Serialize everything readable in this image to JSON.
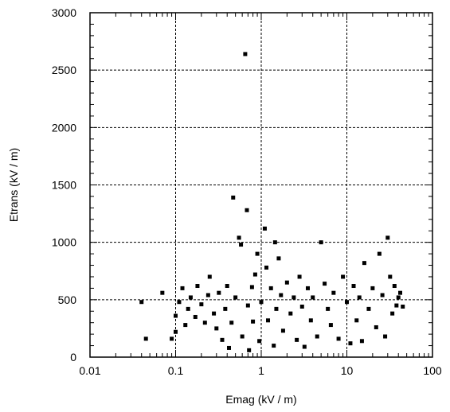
{
  "chart_data": {
    "type": "scatter",
    "title": "",
    "xlabel": "Emag   (kV / m)",
    "ylabel": "Etrans   (kV / m)",
    "x_scale": "log",
    "xlim": [
      0.01,
      100
    ],
    "ylim": [
      0,
      3000
    ],
    "grid": true,
    "x_major_ticks": [
      0.01,
      0.1,
      1,
      10,
      100
    ],
    "x_tick_labels": [
      "0.01",
      "0.1",
      "1",
      "10",
      "100"
    ],
    "y_ticks": [
      0,
      500,
      1000,
      1500,
      2000,
      2500,
      3000
    ],
    "y_tick_labels": [
      "0",
      "500",
      "1000",
      "1500",
      "2000",
      "2500",
      "3000"
    ],
    "marker_color": "#000000",
    "points": [
      [
        0.04,
        480
      ],
      [
        0.045,
        160
      ],
      [
        0.07,
        560
      ],
      [
        0.09,
        160
      ],
      [
        0.1,
        220
      ],
      [
        0.1,
        360
      ],
      [
        0.11,
        480
      ],
      [
        0.12,
        600
      ],
      [
        0.13,
        280
      ],
      [
        0.14,
        420
      ],
      [
        0.15,
        520
      ],
      [
        0.17,
        350
      ],
      [
        0.18,
        620
      ],
      [
        0.2,
        460
      ],
      [
        0.22,
        300
      ],
      [
        0.24,
        540
      ],
      [
        0.25,
        700
      ],
      [
        0.28,
        380
      ],
      [
        0.3,
        250
      ],
      [
        0.32,
        560
      ],
      [
        0.35,
        150
      ],
      [
        0.38,
        420
      ],
      [
        0.4,
        620
      ],
      [
        0.42,
        80
      ],
      [
        0.45,
        300
      ],
      [
        0.47,
        1390
      ],
      [
        0.5,
        520
      ],
      [
        0.55,
        1040
      ],
      [
        0.58,
        980
      ],
      [
        0.6,
        180
      ],
      [
        0.65,
        2640
      ],
      [
        0.68,
        1280
      ],
      [
        0.7,
        450
      ],
      [
        0.72,
        60
      ],
      [
        0.78,
        610
      ],
      [
        0.8,
        310
      ],
      [
        0.85,
        720
      ],
      [
        0.9,
        900
      ],
      [
        0.95,
        140
      ],
      [
        1.0,
        480
      ],
      [
        1.1,
        1120
      ],
      [
        1.15,
        780
      ],
      [
        1.2,
        320
      ],
      [
        1.3,
        600
      ],
      [
        1.4,
        100
      ],
      [
        1.45,
        1000
      ],
      [
        1.5,
        420
      ],
      [
        1.6,
        860
      ],
      [
        1.7,
        540
      ],
      [
        1.8,
        230
      ],
      [
        2.0,
        650
      ],
      [
        2.2,
        380
      ],
      [
        2.4,
        520
      ],
      [
        2.6,
        150
      ],
      [
        2.8,
        700
      ],
      [
        3.0,
        440
      ],
      [
        3.2,
        90
      ],
      [
        3.5,
        600
      ],
      [
        3.8,
        320
      ],
      [
        4.0,
        520
      ],
      [
        4.5,
        180
      ],
      [
        5.0,
        1000
      ],
      [
        5.5,
        640
      ],
      [
        6.0,
        420
      ],
      [
        6.5,
        280
      ],
      [
        7.0,
        560
      ],
      [
        8.0,
        160
      ],
      [
        9.0,
        700
      ],
      [
        10.0,
        480
      ],
      [
        11.0,
        120
      ],
      [
        12.0,
        620
      ],
      [
        13.0,
        320
      ],
      [
        14.0,
        520
      ],
      [
        15.0,
        140
      ],
      [
        16.0,
        820
      ],
      [
        18.0,
        420
      ],
      [
        20.0,
        600
      ],
      [
        22.0,
        260
      ],
      [
        24.0,
        900
      ],
      [
        26.0,
        540
      ],
      [
        28.0,
        180
      ],
      [
        30.0,
        1040
      ],
      [
        32.0,
        700
      ],
      [
        34.0,
        380
      ],
      [
        36.0,
        620
      ],
      [
        38.0,
        450
      ],
      [
        40.0,
        520
      ],
      [
        42.0,
        560
      ],
      [
        45.0,
        440
      ]
    ]
  }
}
